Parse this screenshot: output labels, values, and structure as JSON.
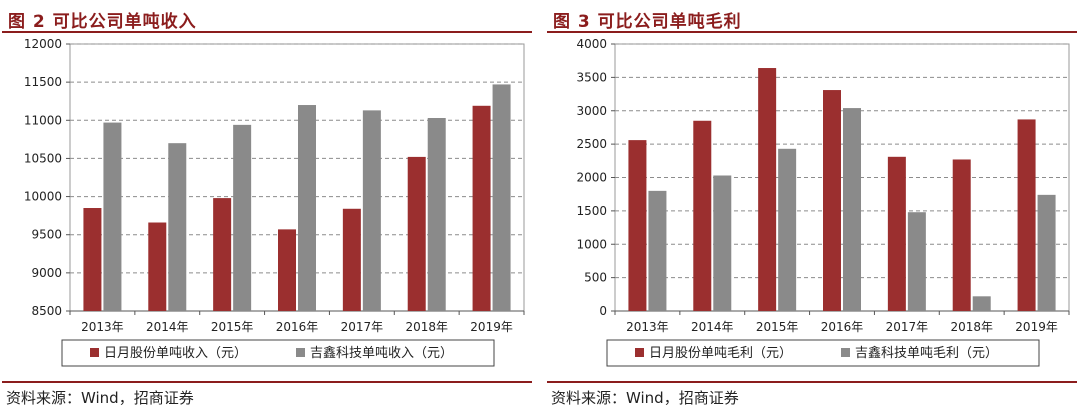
{
  "colors": {
    "series1": "#9b2f2f",
    "series2": "#8a8a8a",
    "accent": "#8b1d1d"
  },
  "chart_data": [
    {
      "type": "bar",
      "title": "图 2  可比公司单吨收入",
      "source": "资料来源：Wind，招商证券",
      "categories": [
        "2013年",
        "2014年",
        "2015年",
        "2016年",
        "2017年",
        "2018年",
        "2019年"
      ],
      "series": [
        {
          "name": "日月股份单吨收入（元）",
          "values": [
            9850,
            9660,
            9980,
            9570,
            9840,
            10520,
            11190
          ]
        },
        {
          "name": "吉鑫科技单吨收入（元）",
          "values": [
            10970,
            10700,
            10940,
            11200,
            11130,
            11030,
            11470
          ]
        }
      ],
      "ylim": [
        8500,
        12000
      ],
      "yticks": [
        8500,
        9000,
        9500,
        10000,
        10500,
        11000,
        11500,
        12000
      ],
      "grid": true,
      "legend": "bottom"
    },
    {
      "type": "bar",
      "title": "图 3  可比公司单吨毛利",
      "source": "资料来源：Wind，招商证券",
      "categories": [
        "2013年",
        "2014年",
        "2015年",
        "2016年",
        "2017年",
        "2018年",
        "2019年"
      ],
      "series": [
        {
          "name": "日月股份单吨毛利（元）",
          "values": [
            2560,
            2850,
            3640,
            3310,
            2310,
            2270,
            2870
          ]
        },
        {
          "name": "吉鑫科技单吨毛利（元）",
          "values": [
            1800,
            2030,
            2430,
            3040,
            1480,
            220,
            1740
          ]
        }
      ],
      "ylim": [
        0,
        4000
      ],
      "yticks": [
        0,
        500,
        1000,
        1500,
        2000,
        2500,
        3000,
        3500,
        4000
      ],
      "grid": true,
      "legend": "bottom"
    }
  ]
}
